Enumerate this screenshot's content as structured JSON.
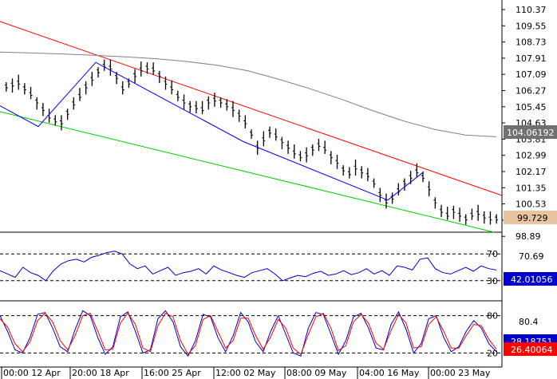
{
  "chart_data": [
    {
      "type": "line",
      "name": "price",
      "ylim": [
        99.0,
        110.8
      ],
      "y_ticks": [
        "110.37",
        "109.55",
        "108.73",
        "107.91",
        "107.09",
        "106.27",
        "105.45",
        "104.63",
        "103.81",
        "102.99",
        "102.17",
        "101.35",
        "100.53",
        "99.71",
        "98.89"
      ],
      "x_tick_labels": [
        "00:00 12 Apr",
        "20:00 18 Apr",
        "16:00 25 Apr",
        "12:00 02 May",
        "08:00 09 May",
        "04:00 16 May",
        "00:00 23 May"
      ],
      "price_series": [
        106.7,
        106.8,
        106.9,
        106.6,
        106.3,
        105.9,
        105.5,
        105.1,
        104.9,
        104.8,
        105.3,
        105.8,
        106.2,
        106.7,
        107.1,
        107.5,
        107.8,
        107.7,
        107.2,
        106.6,
        106.9,
        107.3,
        107.6,
        107.7,
        107.6,
        107.3,
        106.9,
        106.6,
        106.2,
        105.9,
        105.7,
        105.6,
        105.5,
        105.9,
        106.0,
        105.9,
        105.7,
        105.5,
        105.2,
        104.8,
        104.2,
        103.5,
        103.9,
        104.3,
        104.1,
        103.8,
        103.5,
        103.2,
        103.0,
        103.1,
        103.4,
        103.6,
        103.4,
        103.0,
        102.7,
        102.3,
        102.1,
        102.4,
        102.2,
        102.0,
        101.6,
        101.0,
        100.6,
        100.8,
        101.2,
        101.6,
        101.9,
        102.2,
        101.9,
        101.3,
        100.6,
        100.1,
        99.9,
        100.1,
        99.9,
        99.7,
        99.9,
        100.0,
        99.8,
        99.7,
        99.7
      ],
      "ma_series": [
        108.55,
        108.5,
        108.45,
        108.38,
        108.3,
        108.2,
        108.05,
        107.85,
        107.55,
        107.1,
        106.6,
        106.05,
        105.45,
        104.9,
        104.45,
        104.15,
        104.06
      ],
      "current_price_label": "99.729",
      "ma_label": "104.06192",
      "colors": {
        "resistance": "#ff0000",
        "support": "#00cc00",
        "zigzag": "#0000ff",
        "ma": "#808080",
        "bars": "#000000",
        "price_label_bg": "#e8c4a0",
        "ma_label_bg": "#707070"
      }
    },
    {
      "type": "line",
      "name": "rsi",
      "ylim": [
        0,
        100
      ],
      "levels": [
        70,
        30
      ],
      "level_labels": [
        "70",
        "30"
      ],
      "y_ticks": [
        "70.69"
      ],
      "series": [
        {
          "values": [
            45,
            40,
            35,
            50,
            42,
            38,
            30,
            45,
            55,
            60,
            62,
            58,
            65,
            68,
            72,
            74,
            70,
            55,
            48,
            52,
            40,
            45,
            50,
            38,
            42,
            44,
            48,
            40,
            52,
            46,
            42,
            38,
            35,
            42,
            45,
            48,
            40,
            30,
            34,
            38,
            36,
            41,
            44,
            38,
            40,
            45,
            39,
            42,
            48,
            40,
            45,
            38,
            52,
            50,
            46,
            62,
            64,
            48,
            42,
            40,
            45,
            50,
            44,
            52,
            48,
            46
          ]
        }
      ],
      "current_label": "42.01056",
      "colors": {
        "line": "#0000cc",
        "label_bg": "#0000cc"
      }
    },
    {
      "type": "line",
      "name": "stochastic",
      "ylim": [
        0,
        100
      ],
      "levels": [
        80,
        20
      ],
      "level_labels": [
        "80",
        "20"
      ],
      "y_ticks": [
        "80.4"
      ],
      "series": [
        {
          "color": "#0000cc",
          "values": [
            80,
            55,
            25,
            20,
            45,
            82,
            85,
            60,
            30,
            22,
            58,
            88,
            80,
            45,
            18,
            30,
            78,
            86,
            55,
            20,
            25,
            75,
            88,
            70,
            30,
            15,
            40,
            82,
            78,
            44,
            22,
            48,
            85,
            70,
            38,
            22,
            55,
            80,
            50,
            20,
            15,
            60,
            85,
            82,
            50,
            18,
            40,
            78,
            84,
            60,
            28,
            25,
            66,
            86,
            58,
            20,
            35,
            75,
            80,
            45,
            22,
            30,
            55,
            72,
            60,
            35,
            22
          ]
        },
        {
          "color": "#ff0000",
          "values": [
            75,
            62,
            35,
            22,
            38,
            72,
            84,
            70,
            40,
            25,
            48,
            80,
            84,
            55,
            25,
            26,
            68,
            84,
            66,
            28,
            22,
            64,
            84,
            78,
            40,
            18,
            32,
            74,
            80,
            54,
            28,
            40,
            76,
            76,
            48,
            26,
            46,
            74,
            60,
            28,
            18,
            50,
            78,
            84,
            60,
            24,
            32,
            70,
            82,
            68,
            36,
            26,
            56,
            82,
            68,
            28,
            30,
            66,
            78,
            55,
            28,
            28,
            48,
            66,
            64,
            42,
            26
          ]
        }
      ],
      "current_labels": [
        "26.40064",
        "28.18751"
      ],
      "colors": {
        "blue_label_bg": "#0000cc",
        "red_label_bg": "#ff0000"
      }
    }
  ]
}
